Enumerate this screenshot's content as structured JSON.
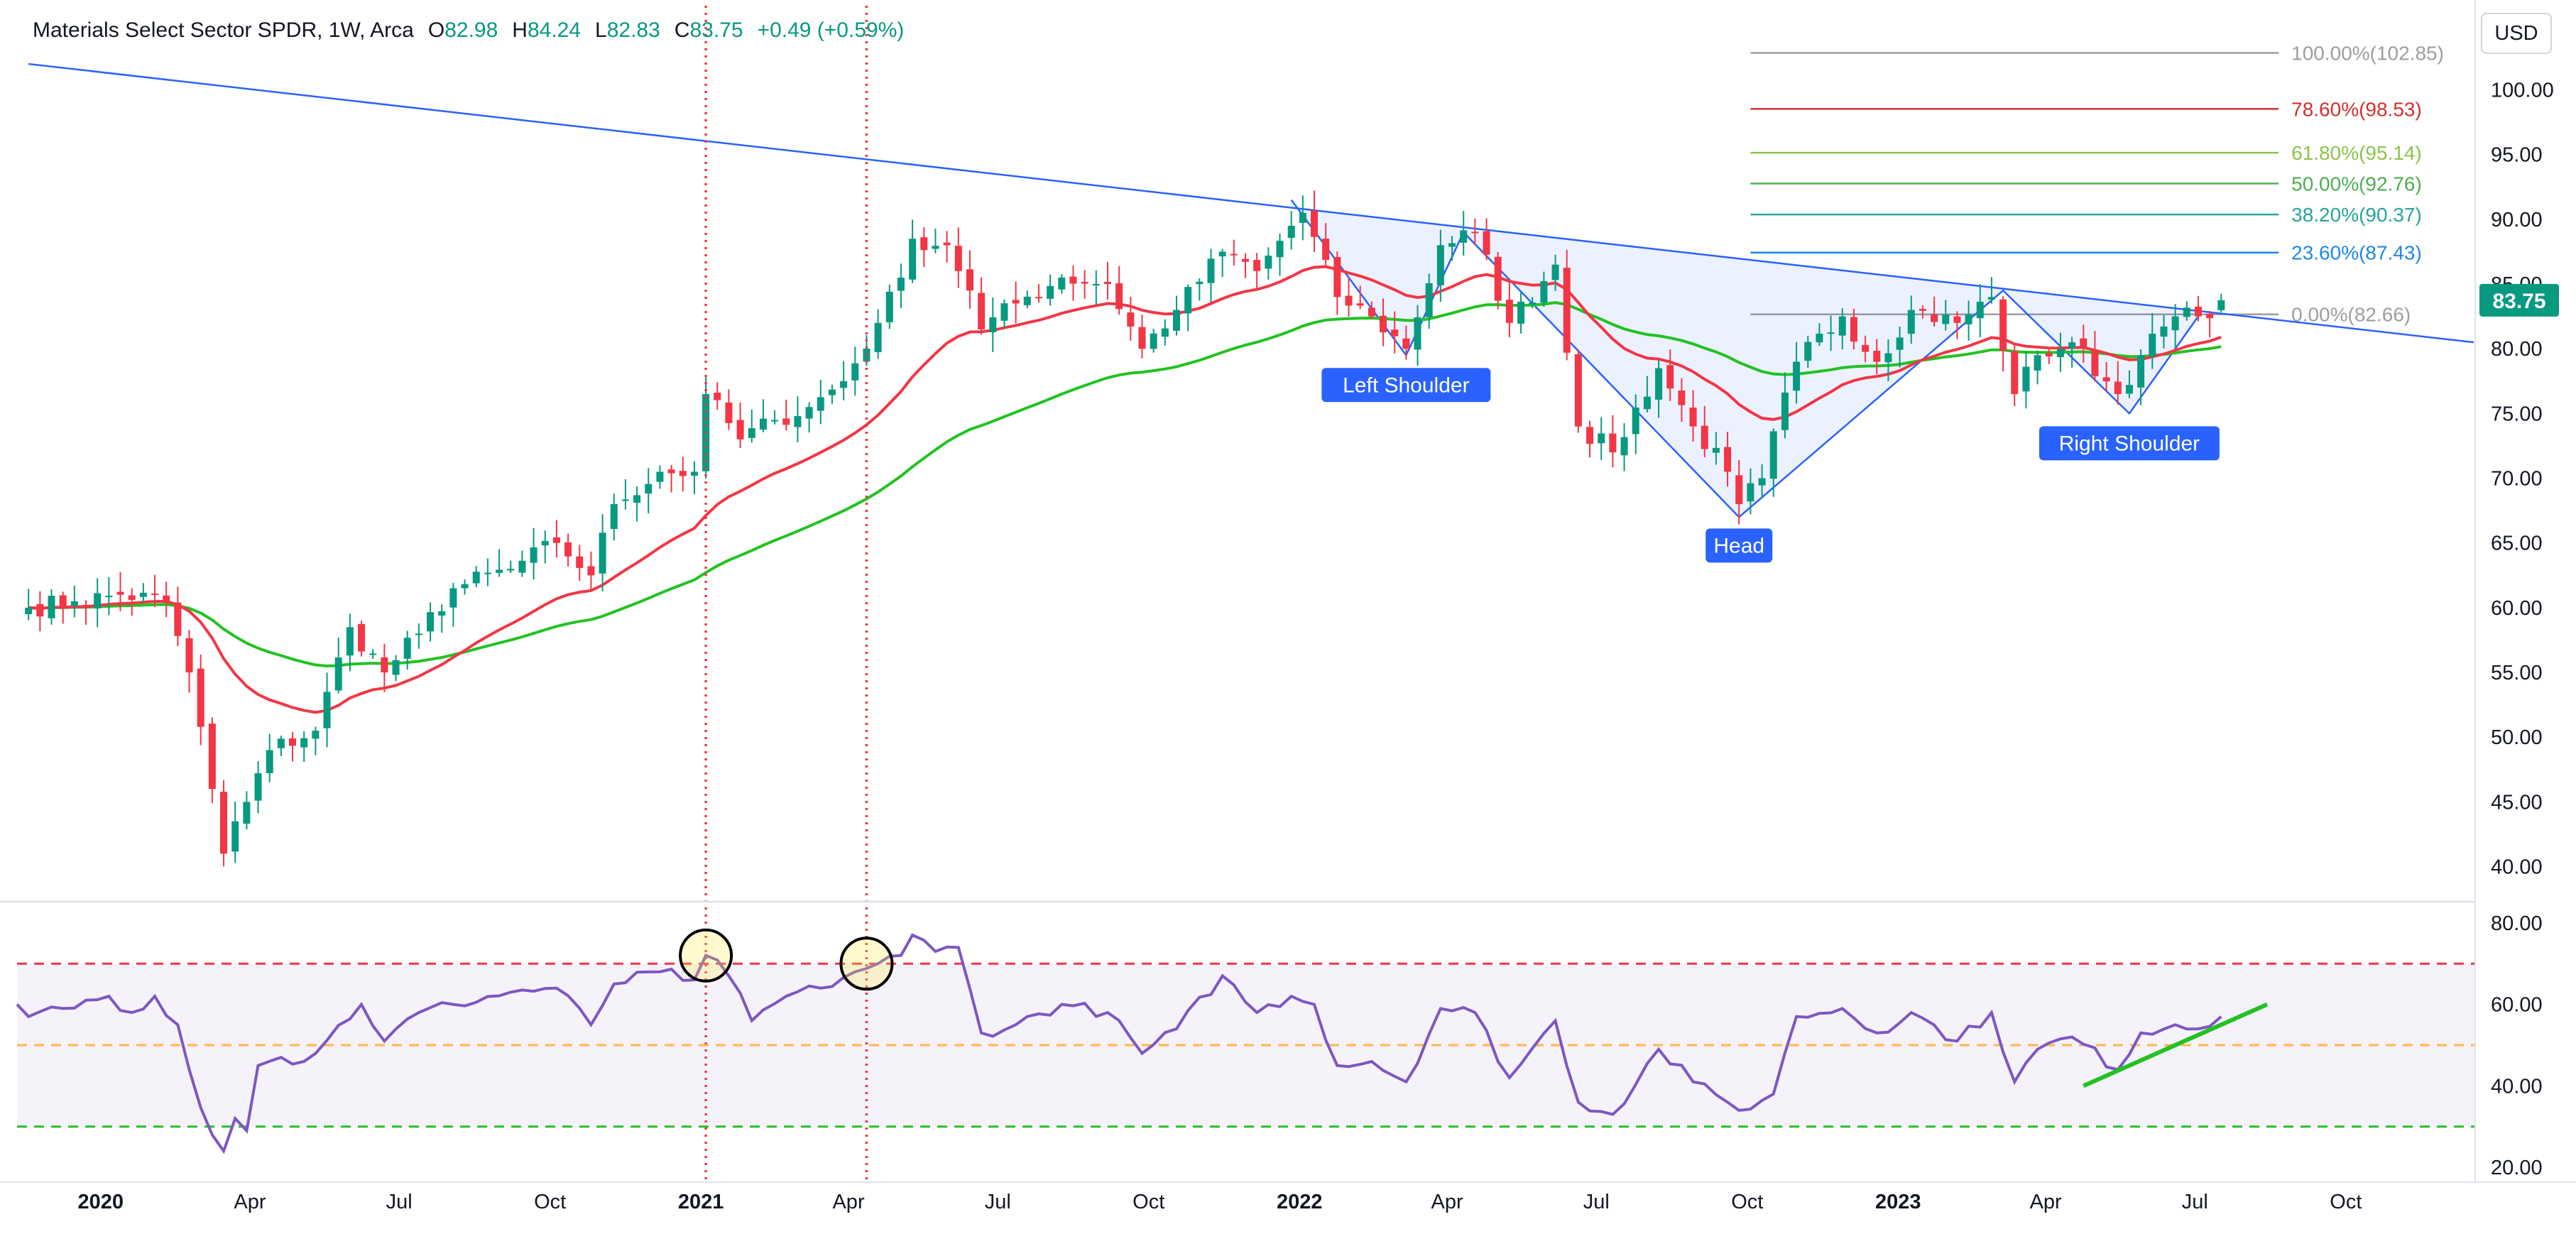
{
  "legend": {
    "symbol": "Materials Select Sector SPDR, 1W, Arca",
    "open_label": "O",
    "open": "82.98",
    "high_label": "H",
    "high": "84.24",
    "low_label": "L",
    "low": "82.83",
    "close_label": "C",
    "close": "83.75",
    "change": "+0.49 (+0.59%)"
  },
  "currency": "USD",
  "last_price_label": "83.75",
  "colors": {
    "up": "#089981",
    "down": "#f23645",
    "ema_fast": "#f23645",
    "ema_slow": "#22c222",
    "trend": "#2962ff",
    "rsi": "#7e57c2",
    "highlight": "#ffeb3b"
  },
  "chart_data": [
    {
      "type": "candlestick",
      "title": "",
      "x_axis": {
        "ticks": [
          "2020",
          "Apr",
          "Jul",
          "Oct",
          "2021",
          "Apr",
          "Jul",
          "Oct",
          "2022",
          "Apr",
          "Jul",
          "Oct",
          "2023",
          "Apr",
          "Jul",
          "Oct"
        ],
        "tick_dates": [
          "2020-01-01",
          "2020-04-01",
          "2020-07-01",
          "2020-10-01",
          "2021-01-01",
          "2021-04-01",
          "2021-07-01",
          "2021-10-01",
          "2022-01-01",
          "2022-04-01",
          "2022-07-01",
          "2022-10-01",
          "2023-01-01",
          "2023-04-01",
          "2023-07-01",
          "2023-10-01"
        ],
        "bold_ticks": [
          "2020",
          "2021",
          "2022",
          "2023"
        ],
        "range": [
          "2019-11-11",
          "2023-12-18"
        ]
      },
      "y_axis": {
        "ticks": [
          "40.00",
          "45.00",
          "50.00",
          "55.00",
          "60.00",
          "65.00",
          "70.00",
          "75.00",
          "80.00",
          "85.00",
          "90.00",
          "95.00",
          "100.00"
        ],
        "range": [
          37.4,
          106.5
        ],
        "side": "right"
      },
      "key_closes": [
        [
          "2019-11-18",
          60.0
        ],
        [
          "2019-12-16",
          60.5
        ],
        [
          "2020-01-13",
          61.0
        ],
        [
          "2020-02-10",
          60.5
        ],
        [
          "2020-02-24",
          55.0
        ],
        [
          "2020-03-09",
          46.0
        ],
        [
          "2020-03-16",
          41.0
        ],
        [
          "2020-03-23",
          43.5
        ],
        [
          "2020-03-30",
          45.0
        ],
        [
          "2020-04-13",
          49.0
        ],
        [
          "2020-05-11",
          50.5
        ],
        [
          "2020-06-01",
          58.5
        ],
        [
          "2020-06-22",
          55.0
        ],
        [
          "2020-07-13",
          58.0
        ],
        [
          "2020-08-03",
          61.5
        ],
        [
          "2020-09-07",
          63.0
        ],
        [
          "2020-10-05",
          65.0
        ],
        [
          "2020-10-26",
          62.5
        ],
        [
          "2020-11-09",
          68.0
        ],
        [
          "2020-12-07",
          70.5
        ],
        [
          "2020-12-28",
          70.5
        ],
        [
          "2021-01-04",
          76.5
        ],
        [
          "2021-01-25",
          73.0
        ],
        [
          "2021-02-15",
          74.5
        ],
        [
          "2021-03-08",
          75.5
        ],
        [
          "2021-03-29",
          77.5
        ],
        [
          "2021-04-19",
          82.0
        ],
        [
          "2021-05-03",
          85.5
        ],
        [
          "2021-05-10",
          88.5
        ],
        [
          "2021-05-31",
          88.0
        ],
        [
          "2021-06-14",
          84.5
        ],
        [
          "2021-06-21",
          81.5
        ],
        [
          "2021-07-12",
          83.5
        ],
        [
          "2021-08-09",
          85.5
        ],
        [
          "2021-09-06",
          85.0
        ],
        [
          "2021-09-27",
          80.0
        ],
        [
          "2021-10-18",
          83.0
        ],
        [
          "2021-11-15",
          87.5
        ],
        [
          "2021-12-06",
          86.0
        ],
        [
          "2021-12-27",
          89.5
        ],
        [
          "2022-01-03",
          90.5
        ],
        [
          "2022-01-24",
          84.0
        ],
        [
          "2022-02-14",
          82.5
        ],
        [
          "2022-03-07",
          80.0
        ],
        [
          "2022-03-28",
          88.0
        ],
        [
          "2022-04-18",
          89.0
        ],
        [
          "2022-05-09",
          82.0
        ],
        [
          "2022-06-06",
          86.5
        ],
        [
          "2022-06-20",
          74.0
        ],
        [
          "2022-07-11",
          72.0
        ],
        [
          "2022-08-08",
          78.5
        ],
        [
          "2022-08-29",
          74.0
        ],
        [
          "2022-09-19",
          70.5
        ],
        [
          "2022-09-26",
          68.0
        ],
        [
          "2022-10-10",
          70.0
        ],
        [
          "2022-10-31",
          79.0
        ],
        [
          "2022-11-28",
          82.5
        ],
        [
          "2022-12-19",
          79.0
        ],
        [
          "2023-01-09",
          83.0
        ],
        [
          "2023-02-06",
          82.0
        ],
        [
          "2023-02-27",
          84.0
        ],
        [
          "2023-03-13",
          76.5
        ],
        [
          "2023-03-27",
          79.5
        ],
        [
          "2023-04-17",
          80.5
        ],
        [
          "2023-05-15",
          76.5
        ],
        [
          "2023-05-29",
          79.5
        ],
        [
          "2023-06-19",
          82.5
        ],
        [
          "2023-07-03",
          82.5
        ],
        [
          "2023-07-17",
          83.75
        ]
      ],
      "last_candle": {
        "date": "2023-07-17",
        "open": 82.98,
        "high": 84.24,
        "low": 82.83,
        "close": 83.75
      },
      "series": [
        {
          "name": "",
          "kind": "ema",
          "period": 20
        },
        {
          "name": "",
          "kind": "ema",
          "period": 50
        }
      ],
      "trend_line": {
        "from": [
          "2019-11-18",
          102.0
        ],
        "to": [
          "2023-12-18",
          80.5
        ]
      },
      "fibonacci": {
        "x_range": [
          "2022-10-03",
          "2023-08-21"
        ],
        "levels": [
          {
            "label": "100.00%(102.85)",
            "value": 102.85,
            "color": "#9e9e9e"
          },
          {
            "label": "78.60%(98.53)",
            "value": 98.53,
            "color": "#d32f2f"
          },
          {
            "label": "61.80%(95.14)",
            "value": 95.14,
            "color": "#8bc34a"
          },
          {
            "label": "50.00%(92.76)",
            "value": 92.76,
            "color": "#4caf50"
          },
          {
            "label": "38.20%(90.37)",
            "value": 90.37,
            "color": "#26a69a"
          },
          {
            "label": "23.60%(87.43)",
            "value": 87.43,
            "color": "#1e88e5"
          },
          {
            "label": "0.00%(82.66)",
            "value": 82.66,
            "color": "#9e9e9e"
          }
        ]
      },
      "pattern": {
        "type": "head_and_shoulders",
        "points": [
          [
            "2021-12-27",
            91.5
          ],
          [
            "2022-03-07",
            79.5
          ],
          [
            "2022-04-11",
            89.0
          ],
          [
            "2022-09-26",
            67.0
          ],
          [
            "2023-03-06",
            84.5
          ],
          [
            "2023-05-22",
            75.0
          ],
          [
            "2023-07-03",
            82.5
          ]
        ],
        "labels": [
          {
            "text": "Left Shoulder",
            "date": "2022-03-07",
            "value": 77.2
          },
          {
            "text": "Head",
            "date": "2022-09-26",
            "value": 64.8
          },
          {
            "text": "Right Shoulder",
            "date": "2023-05-22",
            "value": 72.7
          }
        ]
      },
      "markers": [
        {
          "kind": "vertical_dotted_line",
          "date": "2021-01-04",
          "color": "#f23645"
        },
        {
          "kind": "vertical_dotted_line",
          "date": "2021-04-12",
          "color": "#f23645"
        }
      ]
    },
    {
      "type": "line",
      "title": "",
      "y_axis": {
        "ticks": [
          "20.00",
          "40.00",
          "60.00",
          "80.00"
        ],
        "range": [
          16.9,
          84.5
        ],
        "side": "right"
      },
      "key_values": [
        [
          "2019-11-11",
          60
        ],
        [
          "2019-11-18",
          57
        ],
        [
          "2019-12-09",
          59
        ],
        [
          "2020-01-06",
          62
        ],
        [
          "2020-01-20",
          58
        ],
        [
          "2020-02-03",
          62
        ],
        [
          "2020-02-17",
          55
        ],
        [
          "2020-02-24",
          44
        ],
        [
          "2020-03-09",
          28
        ],
        [
          "2020-03-16",
          24
        ],
        [
          "2020-03-23",
          32
        ],
        [
          "2020-03-30",
          29
        ],
        [
          "2020-04-06",
          45
        ],
        [
          "2020-04-20",
          47
        ],
        [
          "2020-05-04",
          46
        ],
        [
          "2020-06-08",
          60
        ],
        [
          "2020-06-22",
          51
        ],
        [
          "2020-07-13",
          58
        ],
        [
          "2020-08-03",
          60
        ],
        [
          "2020-09-07",
          63
        ],
        [
          "2020-10-05",
          64
        ],
        [
          "2020-10-26",
          55
        ],
        [
          "2020-11-09",
          65
        ],
        [
          "2020-12-07",
          68
        ],
        [
          "2020-12-28",
          66
        ],
        [
          "2021-01-04",
          72
        ],
        [
          "2021-01-18",
          67
        ],
        [
          "2021-02-01",
          56
        ],
        [
          "2021-02-22",
          62
        ],
        [
          "2021-03-15",
          64
        ],
        [
          "2021-04-05",
          68
        ],
        [
          "2021-04-19",
          70
        ],
        [
          "2021-05-03",
          72
        ],
        [
          "2021-05-10",
          77
        ],
        [
          "2021-05-24",
          73
        ],
        [
          "2021-06-07",
          74
        ],
        [
          "2021-06-21",
          53
        ],
        [
          "2021-07-12",
          55
        ],
        [
          "2021-08-09",
          60
        ],
        [
          "2021-09-06",
          58
        ],
        [
          "2021-09-27",
          48
        ],
        [
          "2021-10-18",
          54
        ],
        [
          "2021-11-15",
          67
        ],
        [
          "2021-12-06",
          58
        ],
        [
          "2021-12-27",
          62
        ],
        [
          "2022-01-10",
          60
        ],
        [
          "2022-01-24",
          45
        ],
        [
          "2022-02-14",
          46
        ],
        [
          "2022-03-07",
          41
        ],
        [
          "2022-03-28",
          59
        ],
        [
          "2022-04-18",
          58
        ],
        [
          "2022-05-09",
          42
        ],
        [
          "2022-06-06",
          56
        ],
        [
          "2022-06-20",
          36
        ],
        [
          "2022-07-11",
          33
        ],
        [
          "2022-08-08",
          49
        ],
        [
          "2022-08-29",
          41
        ],
        [
          "2022-09-19",
          36
        ],
        [
          "2022-09-26",
          34
        ],
        [
          "2022-10-17",
          38
        ],
        [
          "2022-10-31",
          57
        ],
        [
          "2022-11-28",
          59
        ],
        [
          "2022-12-19",
          53
        ],
        [
          "2023-01-09",
          58
        ],
        [
          "2023-02-06",
          51
        ],
        [
          "2023-02-27",
          58
        ],
        [
          "2023-03-13",
          41
        ],
        [
          "2023-03-27",
          49
        ],
        [
          "2023-04-17",
          52
        ],
        [
          "2023-05-15",
          44
        ],
        [
          "2023-05-29",
          53
        ],
        [
          "2023-06-19",
          55
        ],
        [
          "2023-07-03",
          54
        ],
        [
          "2023-07-17",
          57
        ]
      ],
      "bands": {
        "upper": 70,
        "middle": 50,
        "lower": 30
      },
      "trend_line": {
        "from": [
          "2023-04-24",
          40.0
        ],
        "to": [
          "2023-08-14",
          60.0
        ],
        "color": "#22c222"
      },
      "highlight_circles": [
        {
          "date": "2021-01-04",
          "value": 72
        },
        {
          "date": "2021-04-12",
          "value": 70
        }
      ]
    }
  ]
}
